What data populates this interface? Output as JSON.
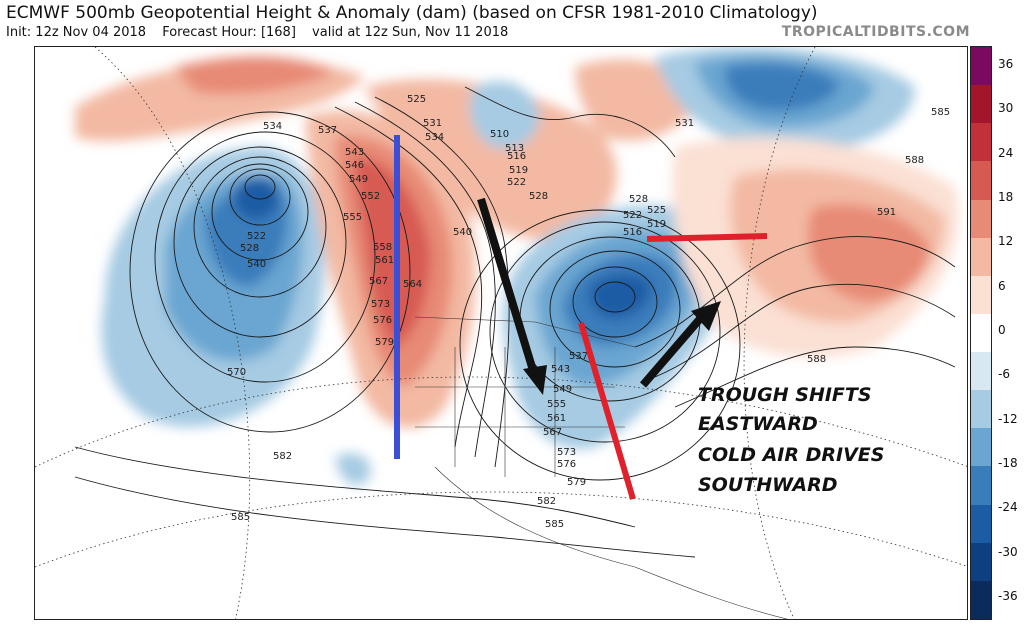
{
  "header": {
    "title": "ECMWF 500mb Geopotential Height & Anomaly (dam) (based on CFSR 1981-2010 Climatology)",
    "init": "Init: 12z Nov 04 2018",
    "forecast_hour": "Forecast Hour: [168]",
    "valid": "valid at 12z Sun, Nov 11 2018",
    "brand": "TROPICALTIDBITS.COM"
  },
  "colorbar": {
    "ticks": [
      "36",
      "30",
      "24",
      "18",
      "12",
      "6",
      "0",
      "-6",
      "-12",
      "-18",
      "-24",
      "-30",
      "-36"
    ],
    "colors": [
      "#7a0a5f",
      "#a3152a",
      "#c2303a",
      "#d75a52",
      "#e78a76",
      "#f3b9a3",
      "#fbe0d4",
      "#ffffff",
      "#d7e8f3",
      "#a6cbe3",
      "#6aa6d1",
      "#3a7dbb",
      "#1b5ca4",
      "#0e3f80",
      "#0a2b5c"
    ]
  },
  "contour_labels": {
    "west_low": [
      "522",
      "528",
      "540",
      "534",
      "537",
      "570"
    ],
    "ridge": [
      "525",
      "531",
      "534",
      "543",
      "546",
      "549",
      "552",
      "555",
      "558",
      "561",
      "564",
      "567",
      "573",
      "576",
      "579",
      "540"
    ],
    "arctic": [
      "510",
      "513",
      "516",
      "519",
      "522",
      "528",
      "531"
    ],
    "east_trough": [
      "528",
      "522",
      "516",
      "525",
      "519",
      "537",
      "543",
      "549",
      "555",
      "561",
      "567",
      "573",
      "576",
      "579"
    ],
    "atlantic": [
      "585",
      "588",
      "591",
      "588"
    ],
    "south": [
      "582",
      "582",
      "585",
      "585"
    ]
  },
  "annotations": {
    "line1": "TROUGH SHIFTS",
    "line2": "EASTWARD",
    "line3": "COLD AIR DRIVES",
    "line4": "SOUTHWARD"
  }
}
